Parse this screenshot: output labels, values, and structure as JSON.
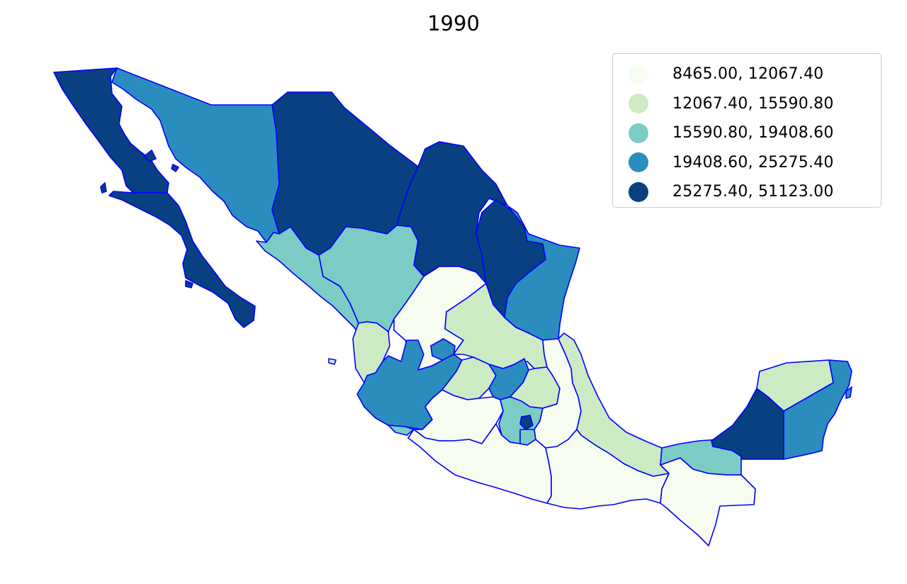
{
  "map": {
    "title": "1990",
    "legend": [
      {
        "label": " 8465.00, 12067.40",
        "color": "#f7fcf0"
      },
      {
        "label": "12067.40, 15590.80",
        "color": "#ccebc5"
      },
      {
        "label": "15590.80, 19408.60",
        "color": "#7bccc4"
      },
      {
        "label": "19408.60, 25275.40",
        "color": "#2b8cbe"
      },
      {
        "label": "25275.40, 51123.00",
        "color": "#084081"
      }
    ],
    "border_color": "#0000ff"
  },
  "regions": [
    {
      "name": "Baja California",
      "class": 4
    },
    {
      "name": "Baja California Sur",
      "class": 4
    },
    {
      "name": "Sonora",
      "class": 3
    },
    {
      "name": "Chihuahua",
      "class": 4
    },
    {
      "name": "Coahuila",
      "class": 4
    },
    {
      "name": "Nuevo León",
      "class": 4
    },
    {
      "name": "Tamaulipas",
      "class": 3
    },
    {
      "name": "Sinaloa",
      "class": 2
    },
    {
      "name": "Durango",
      "class": 2
    },
    {
      "name": "Zacatecas",
      "class": 0
    },
    {
      "name": "San Luis Potosí",
      "class": 1
    },
    {
      "name": "Nayarit",
      "class": 1
    },
    {
      "name": "Aguascalientes",
      "class": 3
    },
    {
      "name": "Jalisco",
      "class": 3
    },
    {
      "name": "Colima",
      "class": 2
    },
    {
      "name": "Guanajuato",
      "class": 1
    },
    {
      "name": "Querétaro",
      "class": 3
    },
    {
      "name": "Hidalgo",
      "class": 1
    },
    {
      "name": "Michoacán",
      "class": 0
    },
    {
      "name": "México",
      "class": 2
    },
    {
      "name": "Distrito Federal",
      "class": 4
    },
    {
      "name": "Morelos",
      "class": 2
    },
    {
      "name": "Tlaxcala",
      "class": 1
    },
    {
      "name": "Puebla",
      "class": 0
    },
    {
      "name": "Veracruz",
      "class": 1
    },
    {
      "name": "Guerrero",
      "class": 0
    },
    {
      "name": "Oaxaca",
      "class": 0
    },
    {
      "name": "Chiapas",
      "class": 0
    },
    {
      "name": "Tabasco",
      "class": 2
    },
    {
      "name": "Campeche",
      "class": 4
    },
    {
      "name": "Yucatán",
      "class": 1
    },
    {
      "name": "Quintana Roo",
      "class": 3
    }
  ]
}
